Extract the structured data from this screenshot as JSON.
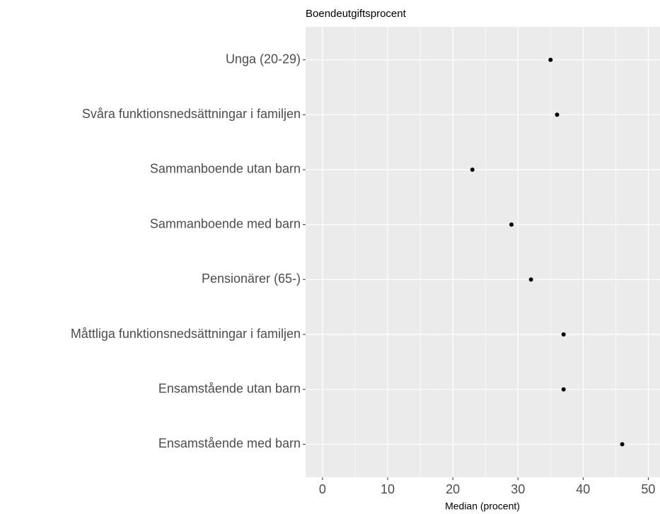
{
  "chart_data": {
    "type": "scatter",
    "title": "Boendeutgiftsprocent",
    "x_label": "Median (procent)",
    "categories": [
      "Unga (20-29)",
      "Svåra funktionsnedsättningar i familjen",
      "Sammanboende utan barn",
      "Sammanboende med barn",
      "Pensionärer (65-)",
      "Måttliga funktionsnedsättningar i familjen",
      "Ensamstående utan barn",
      "Ensamstående med barn"
    ],
    "values": [
      35,
      36,
      23,
      29,
      32,
      37,
      37,
      46
    ],
    "color": "#000000",
    "xlim": [
      -2.6,
      51.8
    ],
    "xticks": [
      0,
      10,
      20,
      30,
      40,
      50
    ],
    "grid": true
  }
}
